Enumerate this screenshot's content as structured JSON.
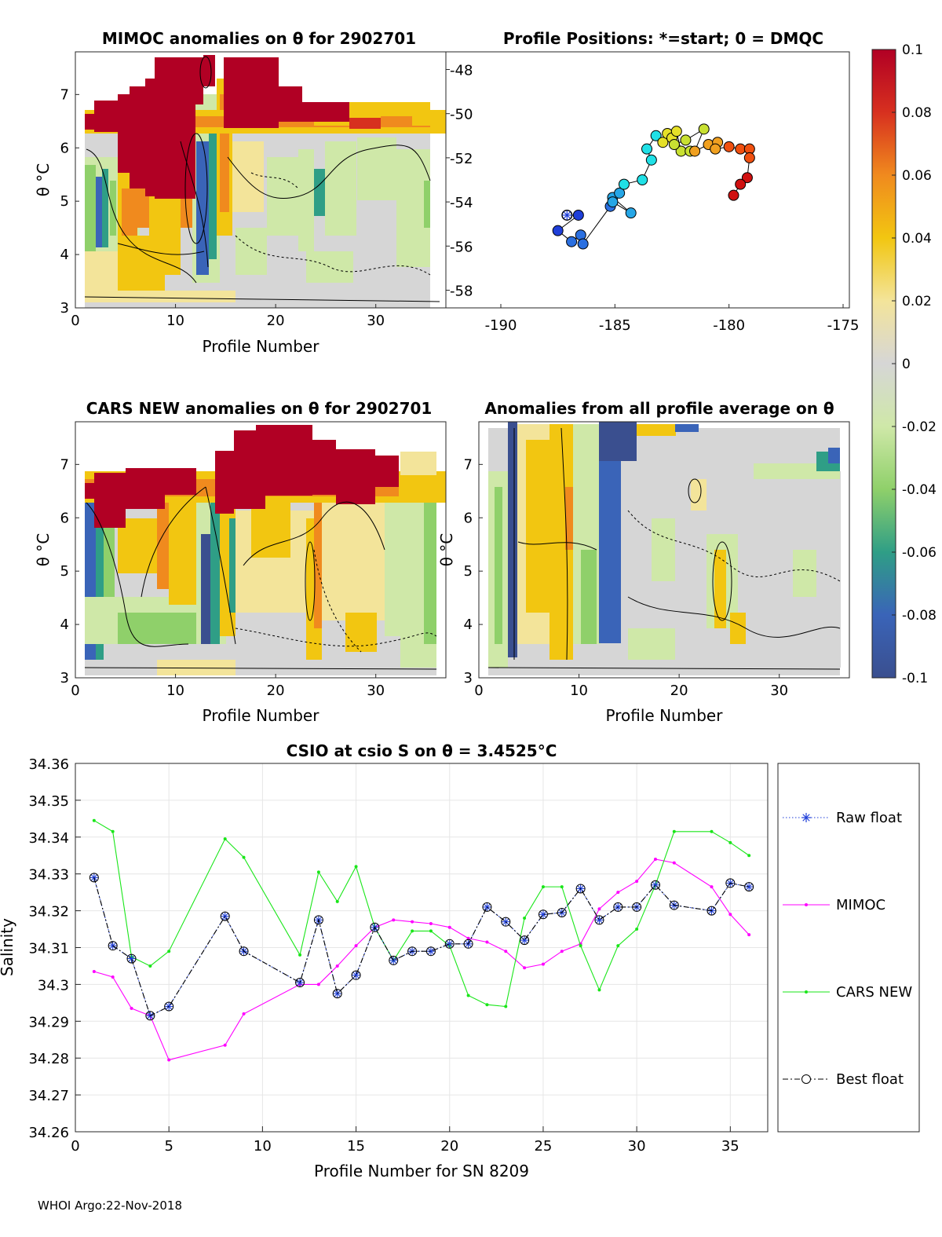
{
  "colors": {
    "deep_red": "#b10024",
    "red": "#d7301f",
    "orange": "#f08a1e",
    "yellow": "#f2c611",
    "light_yellow": "#f3e49a",
    "grey": "#d6d6d6",
    "light_green": "#cfe8a8",
    "green": "#8fd06a",
    "teal": "#2f9e86",
    "blue": "#3a64b8",
    "navy": "#3a4f8f",
    "magenta": "#ff00ff",
    "lime": "#19e619",
    "raw_blue": "#1f3fd9"
  },
  "chart_data": [
    {
      "id": "mimoc",
      "type": "heatmap",
      "title": "MIMOC anomalies on θ  for 2902701",
      "xlabel": "Profile Number",
      "ylabel": "θ °C",
      "xlim": [
        0,
        37
      ],
      "ylim": [
        3,
        7.8
      ],
      "xticks": [
        "0",
        "10",
        "20",
        "30"
      ],
      "yticks": [
        "3",
        "4",
        "5",
        "6",
        "7"
      ],
      "description_values": "salinity anomaly vs profile and potential temperature, colour scale -0.1 to 0.1"
    },
    {
      "id": "positions",
      "type": "scatter",
      "title": "Profile Positions: *=start; 0 = DMQC",
      "xlim": [
        -190,
        -175
      ],
      "ylim": [
        -58.8,
        -47.2
      ],
      "xticks": [
        "-190",
        "-185",
        "-180",
        "-175"
      ],
      "yticks": [
        "-48",
        "-50",
        "-52",
        "-54",
        "-56",
        "-58"
      ],
      "lon": [
        -187.1,
        -186.6,
        -187.5,
        -186.9,
        -186.5,
        -186.4,
        -185.2,
        -185.1,
        -184.3,
        -185.1,
        -184.8,
        -184.6,
        -183.8,
        -183.4,
        -183.6,
        -183.2,
        -182.9,
        -182.7,
        -182.5,
        -182.3,
        -182.1,
        -181.7,
        -182.4,
        -181.9,
        -181.1,
        -181.5,
        -180.9,
        -180.5,
        -180.6,
        -180.0,
        -179.5,
        -179.1,
        -179.1,
        -179.2,
        -179.5,
        -179.8
      ],
      "lat": [
        -54.6,
        -54.6,
        -55.3,
        -55.8,
        -55.5,
        -55.9,
        -54.2,
        -53.8,
        -54.5,
        -54.0,
        -53.6,
        -53.2,
        -53.0,
        -52.1,
        -51.6,
        -51.0,
        -51.3,
        -50.9,
        -51.1,
        -50.8,
        -51.7,
        -51.7,
        -51.4,
        -51.2,
        -50.7,
        -51.7,
        -51.4,
        -51.3,
        -51.6,
        -51.5,
        -51.6,
        -51.6,
        -52.0,
        -52.9,
        -53.2,
        -53.7
      ]
    },
    {
      "id": "cars",
      "type": "heatmap",
      "title": "CARS NEW anomalies on θ for 2902701",
      "xlabel": "Profile Number",
      "ylabel": "θ °C",
      "xlim": [
        0,
        37
      ],
      "ylim": [
        3,
        7.8
      ],
      "xticks": [
        "0",
        "10",
        "20",
        "30"
      ],
      "yticks": [
        "3",
        "4",
        "5",
        "6",
        "7"
      ]
    },
    {
      "id": "allavg",
      "type": "heatmap",
      "title": "Anomalies from all profile average on θ",
      "xlabel": "Profile Number",
      "ylabel": "θ °C",
      "xlim": [
        0,
        37
      ],
      "ylim": [
        3,
        7.8
      ],
      "xticks": [
        "0",
        "10",
        "20",
        "30"
      ],
      "yticks": [
        "3",
        "4",
        "5",
        "6",
        "7"
      ]
    },
    {
      "id": "colorbar",
      "type": "heatmap",
      "range": [
        -0.1,
        0.1
      ],
      "ticks": [
        "0.1",
        "0.08",
        "0.06",
        "0.04",
        "0.02",
        "0",
        "-0.02",
        "-0.04",
        "-0.06",
        "-0.08",
        "-0.1"
      ]
    },
    {
      "id": "salinity",
      "type": "line",
      "title": "CSIO at csio S on θ = 3.4525°C",
      "xlabel": "Profile Number for SN 8209",
      "ylabel": "Salinity",
      "xlim": [
        0,
        37
      ],
      "ylim": [
        34.26,
        34.36
      ],
      "xticks": [
        "0",
        "5",
        "10",
        "15",
        "20",
        "25",
        "30",
        "35"
      ],
      "yticks": [
        "34.26",
        "34.27",
        "34.28",
        "34.29",
        "34.3",
        "34.31",
        "34.32",
        "34.33",
        "34.34",
        "34.35",
        "34.36"
      ],
      "x": [
        1,
        2,
        3,
        4,
        5,
        8,
        9,
        12,
        13,
        14,
        15,
        16,
        17,
        18,
        19,
        20,
        21,
        22,
        23,
        24,
        25,
        26,
        27,
        28,
        29,
        30,
        31,
        32,
        34,
        35,
        36
      ],
      "series": [
        {
          "name": "Raw float",
          "values": [
            34.329,
            34.3105,
            34.307,
            34.2915,
            34.294,
            34.3185,
            34.309,
            34.3005,
            34.3175,
            34.2975,
            34.3025,
            34.3155,
            34.3065,
            34.309,
            34.309,
            34.311,
            34.311,
            34.321,
            34.317,
            34.312,
            34.319,
            34.3195,
            34.326,
            34.3175,
            34.321,
            34.321,
            34.327,
            34.3215,
            34.32,
            34.3275,
            34.3265
          ]
        },
        {
          "name": "MIMOC",
          "values": [
            34.3035,
            34.302,
            34.2935,
            34.2915,
            34.2795,
            34.2835,
            34.292,
            34.3,
            34.3,
            34.305,
            34.3105,
            34.3155,
            34.3175,
            34.317,
            34.3165,
            34.3155,
            34.3125,
            34.3115,
            34.309,
            34.3045,
            34.3055,
            34.309,
            34.311,
            34.3205,
            34.325,
            34.328,
            34.334,
            34.333,
            34.3265,
            34.319,
            34.3135
          ]
        },
        {
          "name": "CARS NEW",
          "values": [
            34.3445,
            34.3415,
            34.3075,
            34.305,
            34.309,
            34.3395,
            34.3345,
            34.308,
            34.3305,
            34.3225,
            34.332,
            34.3155,
            34.3065,
            34.3145,
            34.3145,
            34.3105,
            34.297,
            34.2945,
            34.294,
            34.318,
            34.3265,
            34.3265,
            34.3105,
            34.2985,
            34.3105,
            34.315,
            34.327,
            34.3415,
            34.3415,
            34.3385,
            34.335
          ]
        },
        {
          "name": "Best float",
          "values": [
            34.329,
            34.3105,
            34.307,
            34.2915,
            34.294,
            34.3185,
            34.309,
            34.3005,
            34.3175,
            34.2975,
            34.3025,
            34.3155,
            34.3065,
            34.309,
            34.309,
            34.311,
            34.311,
            34.321,
            34.317,
            34.312,
            34.319,
            34.3195,
            34.326,
            34.3175,
            34.321,
            34.321,
            34.327,
            34.3215,
            34.32,
            34.3275,
            34.3265
          ]
        }
      ],
      "legend": [
        "Raw float",
        "MIMOC",
        "CARS NEW",
        "Best float"
      ]
    }
  ],
  "footer": "WHOI Argo:22-Nov-2018"
}
